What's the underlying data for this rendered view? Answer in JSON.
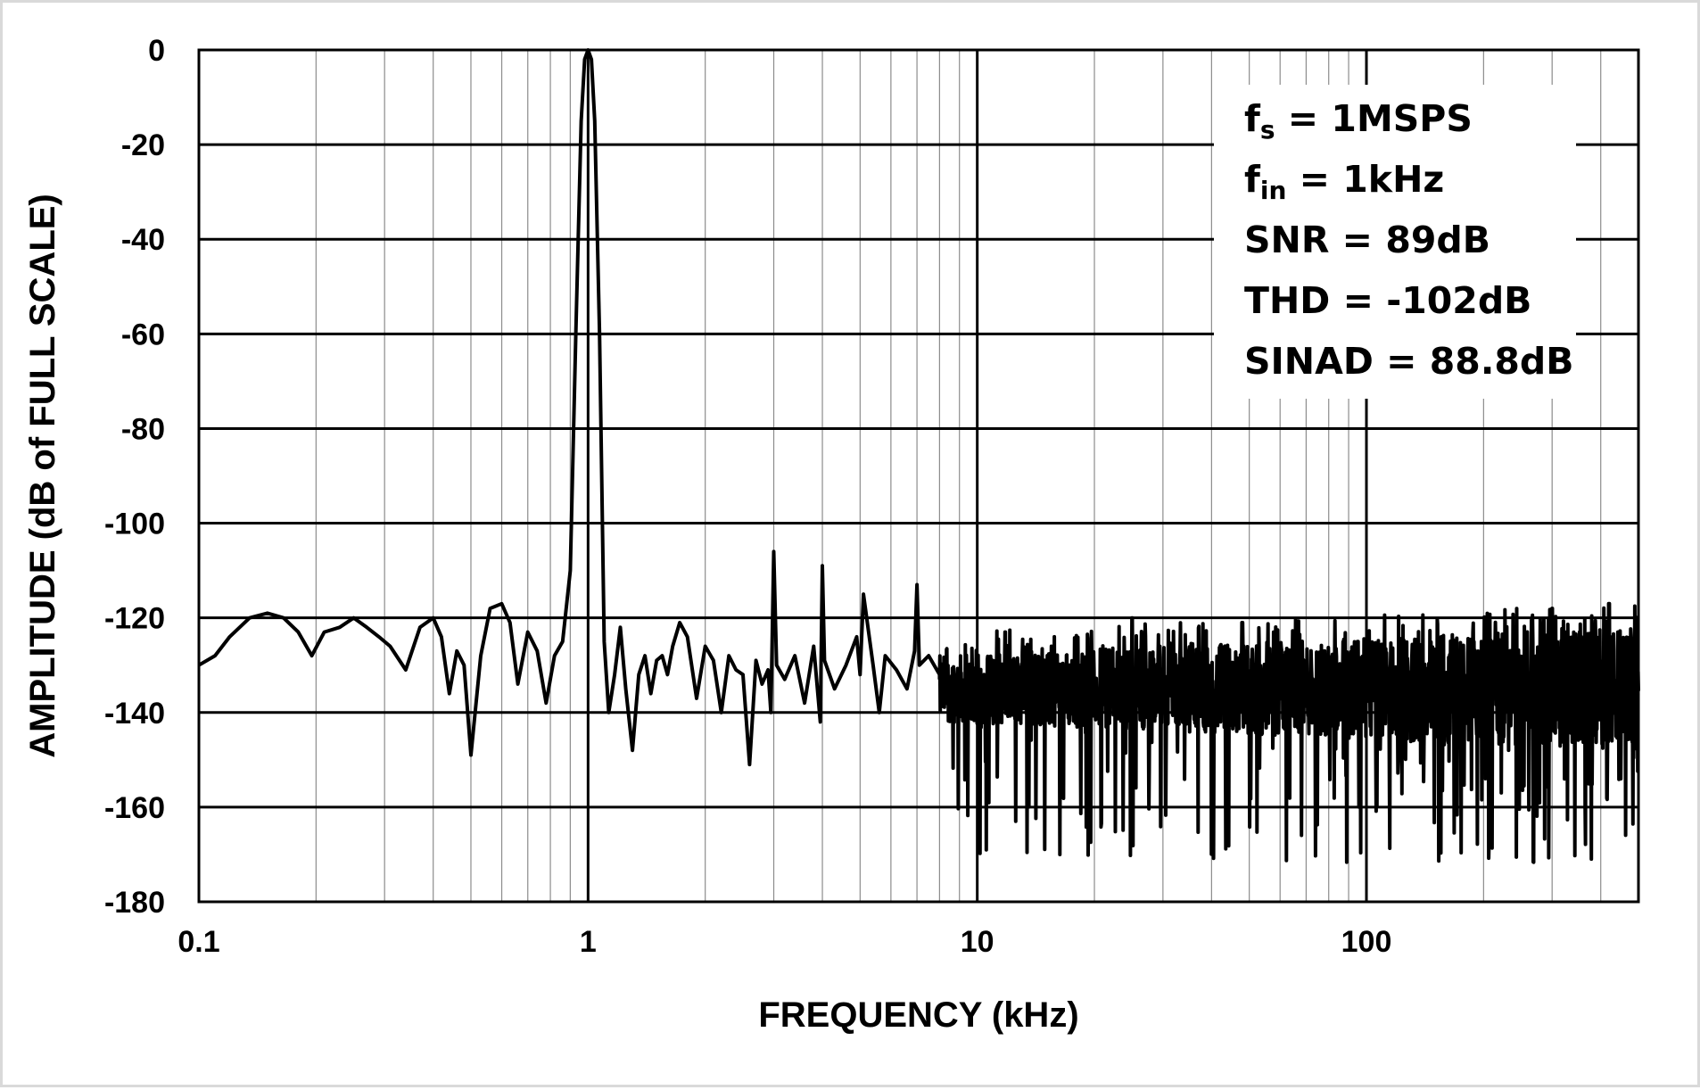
{
  "chart_data": {
    "type": "line",
    "xlabel": "FREQUENCY (kHz)",
    "ylabel": "AMPLITUDE (dB of FULL SCALE)",
    "x_scale": "log",
    "xlim": [
      0.1,
      500
    ],
    "ylim": [
      -180,
      0
    ],
    "x_ticks": [
      {
        "value": 0.1,
        "label": "0.1"
      },
      {
        "value": 1,
        "label": "1"
      },
      {
        "value": 10,
        "label": "10"
      },
      {
        "value": 100,
        "label": "100"
      }
    ],
    "y_ticks": [
      {
        "value": 0,
        "label": "0"
      },
      {
        "value": -20,
        "label": "-20"
      },
      {
        "value": -40,
        "label": "-40"
      },
      {
        "value": -60,
        "label": "-60"
      },
      {
        "value": -80,
        "label": "-80"
      },
      {
        "value": -100,
        "label": "-100"
      },
      {
        "value": -120,
        "label": "-120"
      },
      {
        "value": -140,
        "label": "-140"
      },
      {
        "value": -160,
        "label": "-160"
      },
      {
        "value": -180,
        "label": "-180"
      }
    ],
    "grid": {
      "major": true,
      "minor_x": true
    },
    "legend": "none",
    "annotation": {
      "placement": "top-right",
      "lines": [
        {
          "main": "f",
          "sub": "s",
          "rest": " = 1MSPS"
        },
        {
          "main": "f",
          "sub": "in",
          "rest": " = 1kHz"
        },
        {
          "main": "SNR = 89dB",
          "sub": "",
          "rest": ""
        },
        {
          "main": "THD = -102dB",
          "sub": "",
          "rest": ""
        },
        {
          "main": "SINAD = 88.8dB",
          "sub": "",
          "rest": ""
        }
      ]
    },
    "series": [
      {
        "color": "#000000",
        "x": [
          0.1,
          0.11,
          0.12,
          0.135,
          0.15,
          0.165,
          0.18,
          0.195,
          0.21,
          0.23,
          0.25,
          0.27,
          0.29,
          0.31,
          0.34,
          0.37,
          0.4,
          0.42,
          0.44,
          0.46,
          0.48,
          0.5,
          0.53,
          0.56,
          0.6,
          0.63,
          0.66,
          0.7,
          0.74,
          0.78,
          0.82,
          0.86,
          0.9,
          0.93,
          0.96,
          0.98,
          1.0,
          1.02,
          1.04,
          1.07,
          1.1,
          1.13,
          1.17,
          1.21,
          1.25,
          1.3,
          1.35,
          1.4,
          1.45,
          1.5,
          1.55,
          1.6,
          1.65,
          1.72,
          1.8,
          1.9,
          2.0,
          2.1,
          2.2,
          2.3,
          2.4,
          2.5,
          2.6,
          2.7,
          2.8,
          2.9,
          2.95,
          3.0,
          3.05,
          3.2,
          3.4,
          3.6,
          3.8,
          3.95,
          4.0,
          4.05,
          4.3,
          4.6,
          4.9,
          5.0,
          5.1,
          5.4,
          5.6,
          5.8,
          6.2,
          6.6,
          6.9,
          7.0,
          7.1,
          7.5,
          8.0
        ],
        "y": [
          -130,
          -128,
          -124,
          -120,
          -119,
          -120,
          -123,
          -128,
          -123,
          -122,
          -120,
          -122,
          -124,
          -126,
          -131,
          -122,
          -120,
          -124,
          -136,
          -127,
          -130,
          -149,
          -128,
          -118,
          -117,
          -121,
          -134,
          -123,
          -127,
          -138,
          -128,
          -125,
          -110,
          -60,
          -15,
          -2,
          0,
          -2,
          -15,
          -60,
          -125,
          -140,
          -132,
          -122,
          -135,
          -148,
          -132,
          -128,
          -136,
          -129,
          -128,
          -132,
          -126,
          -121,
          -124,
          -137,
          -126,
          -129,
          -140,
          -128,
          -131,
          -132,
          -151,
          -129,
          -134,
          -131,
          -140,
          -106,
          -130,
          -133,
          -128,
          -138,
          -126,
          -142,
          -109,
          -129,
          -135,
          -130,
          -124,
          -132,
          -115,
          -130,
          -140,
          -128,
          -131,
          -135,
          -127,
          -113,
          -130,
          -128,
          -132
        ]
      }
    ],
    "noise_floor": {
      "x_range": [
        8,
        500
      ],
      "mean": -135,
      "spread": 10,
      "peaks": [
        {
          "x": 11.8,
          "y": -123
        },
        {
          "x": 25,
          "y": -120
        },
        {
          "x": 48,
          "y": -121
        },
        {
          "x": 95,
          "y": -125
        },
        {
          "x": 300,
          "y": -118
        },
        {
          "x": 420,
          "y": -117
        }
      ],
      "min": -172
    }
  }
}
